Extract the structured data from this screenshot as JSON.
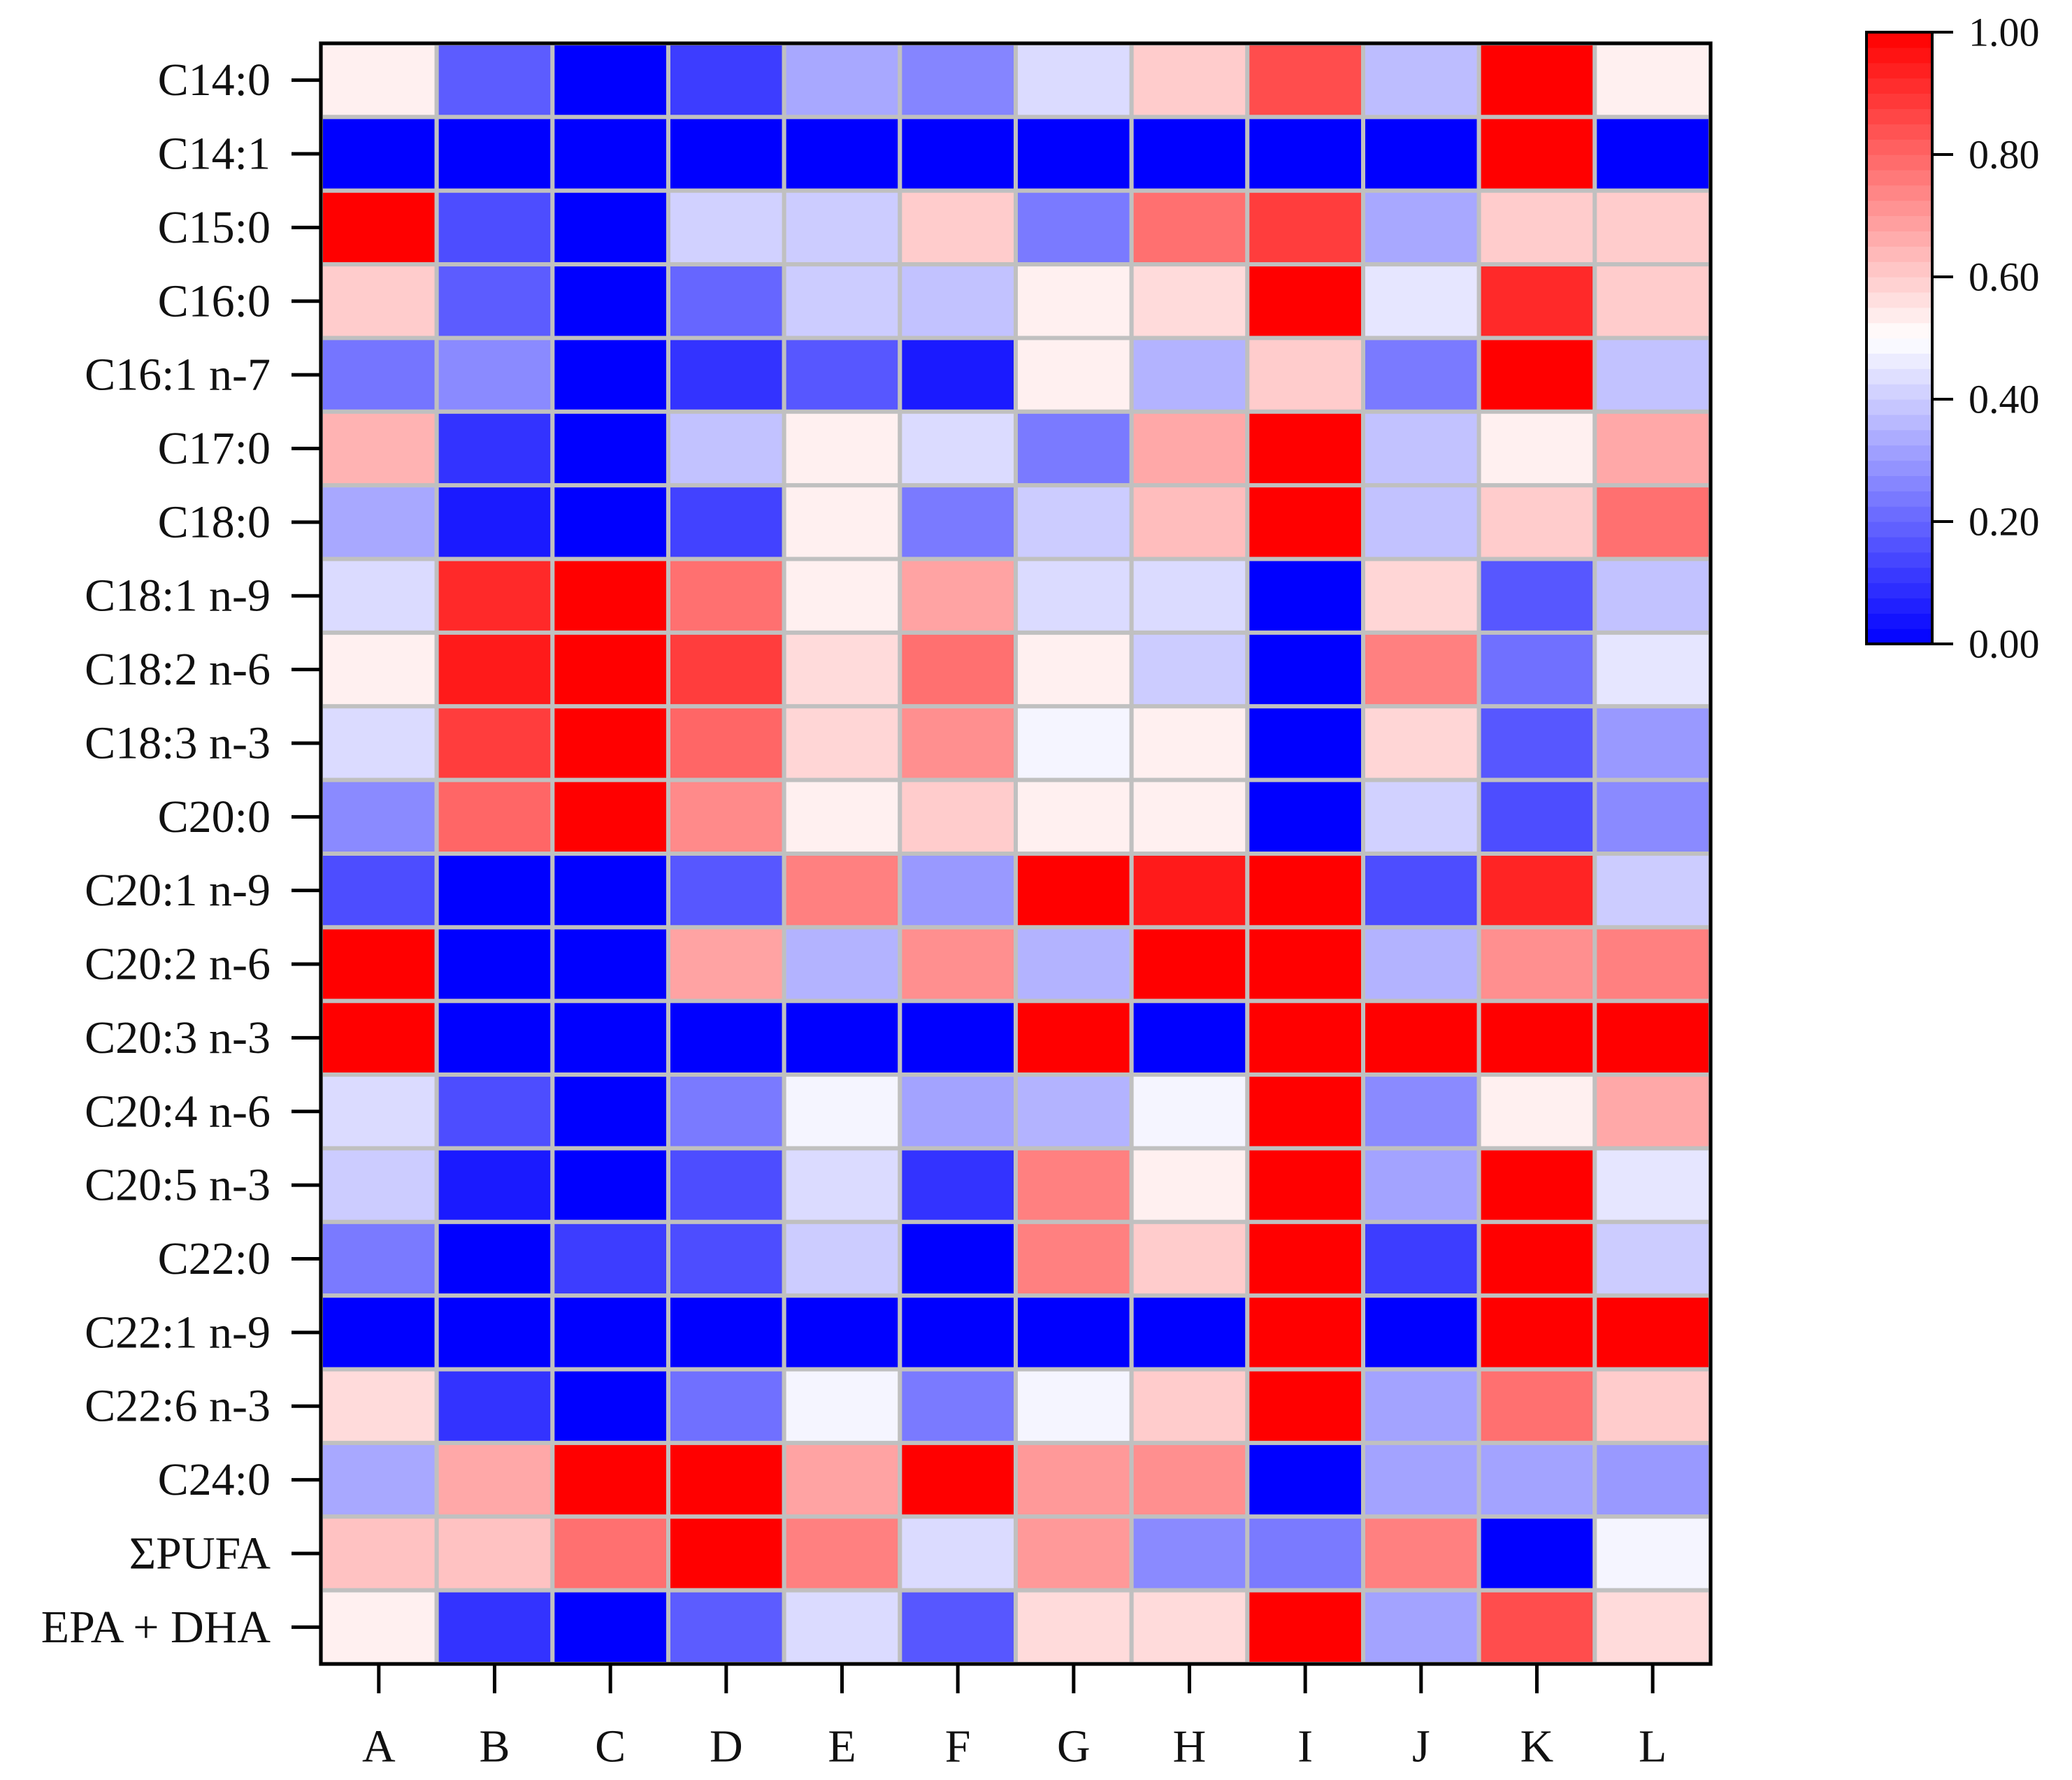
{
  "chart_data": {
    "type": "heatmap",
    "title": "",
    "xlabel": "",
    "ylabel": "",
    "columns": [
      "A",
      "B",
      "C",
      "D",
      "E",
      "F",
      "G",
      "H",
      "I",
      "J",
      "K",
      "L"
    ],
    "rows": [
      "C14:0",
      "C14:1",
      "C15:0",
      "C16:0",
      "C16:1 n-7",
      "C17:0",
      "C18:0",
      "C18:1 n-9",
      "C18:2 n-6",
      "C18:3 n-3",
      "C20:0",
      "C20:1 n-9",
      "C20:2 n-6",
      "C20:3 n-3",
      "C20:4 n-6",
      "C20:5 n-3",
      "C22:0",
      "C22:1 n-9",
      "C22:6 n-3",
      "C24:0",
      "ΣPUFA",
      "EPA + DHA"
    ],
    "values": [
      [
        0.53,
        0.18,
        0.0,
        0.12,
        0.33,
        0.26,
        0.43,
        0.6,
        0.85,
        0.37,
        1.0,
        0.53
      ],
      [
        0.0,
        0.0,
        0.0,
        0.0,
        0.0,
        0.0,
        0.0,
        0.0,
        0.0,
        0.0,
        1.0,
        0.0
      ],
      [
        1.0,
        0.15,
        0.0,
        0.41,
        0.4,
        0.6,
        0.24,
        0.78,
        0.88,
        0.33,
        0.6,
        0.6
      ],
      [
        0.6,
        0.18,
        0.0,
        0.2,
        0.4,
        0.38,
        0.53,
        0.57,
        1.0,
        0.45,
        0.92,
        0.6
      ],
      [
        0.23,
        0.27,
        0.0,
        0.1,
        0.17,
        0.05,
        0.53,
        0.35,
        0.6,
        0.24,
        1.0,
        0.38
      ],
      [
        0.65,
        0.1,
        0.0,
        0.38,
        0.53,
        0.43,
        0.24,
        0.67,
        1.0,
        0.38,
        0.53,
        0.67
      ],
      [
        0.33,
        0.05,
        0.0,
        0.13,
        0.53,
        0.24,
        0.4,
        0.63,
        1.0,
        0.38,
        0.6,
        0.78
      ],
      [
        0.43,
        0.92,
        1.0,
        0.78,
        0.53,
        0.68,
        0.43,
        0.43,
        0.0,
        0.58,
        0.17,
        0.38
      ],
      [
        0.53,
        0.95,
        1.0,
        0.88,
        0.57,
        0.78,
        0.53,
        0.4,
        0.0,
        0.75,
        0.22,
        0.45
      ],
      [
        0.43,
        0.88,
        1.0,
        0.8,
        0.58,
        0.72,
        0.48,
        0.53,
        0.0,
        0.58,
        0.17,
        0.3
      ],
      [
        0.27,
        0.8,
        1.0,
        0.73,
        0.53,
        0.6,
        0.53,
        0.53,
        0.0,
        0.41,
        0.15,
        0.27
      ],
      [
        0.15,
        0.0,
        0.0,
        0.17,
        0.75,
        0.3,
        1.0,
        0.95,
        1.0,
        0.15,
        0.93,
        0.4
      ],
      [
        1.0,
        0.0,
        0.0,
        0.68,
        0.35,
        0.72,
        0.35,
        1.0,
        1.0,
        0.35,
        0.72,
        0.75
      ],
      [
        1.0,
        0.0,
        0.0,
        0.0,
        0.0,
        0.0,
        1.0,
        0.0,
        1.0,
        1.0,
        1.0,
        1.0
      ],
      [
        0.43,
        0.15,
        0.0,
        0.24,
        0.48,
        0.32,
        0.35,
        0.48,
        1.0,
        0.27,
        0.53,
        0.67
      ],
      [
        0.4,
        0.05,
        0.0,
        0.15,
        0.43,
        0.1,
        0.75,
        0.53,
        1.0,
        0.32,
        1.0,
        0.45
      ],
      [
        0.24,
        0.0,
        0.12,
        0.15,
        0.4,
        0.0,
        0.75,
        0.6,
        1.0,
        0.12,
        1.0,
        0.4
      ],
      [
        0.0,
        0.0,
        0.0,
        0.0,
        0.0,
        0.0,
        0.0,
        0.0,
        1.0,
        0.0,
        1.0,
        1.0
      ],
      [
        0.57,
        0.1,
        0.0,
        0.22,
        0.48,
        0.24,
        0.48,
        0.6,
        1.0,
        0.32,
        0.78,
        0.6
      ],
      [
        0.33,
        0.67,
        1.0,
        1.0,
        0.68,
        1.0,
        0.7,
        0.72,
        0.0,
        0.32,
        0.32,
        0.3
      ],
      [
        0.62,
        0.62,
        0.78,
        1.0,
        0.75,
        0.43,
        0.7,
        0.27,
        0.24,
        0.75,
        0.0,
        0.48
      ],
      [
        0.53,
        0.1,
        0.0,
        0.18,
        0.43,
        0.17,
        0.57,
        0.57,
        1.0,
        0.32,
        0.85,
        0.57
      ]
    ],
    "colorbar": {
      "min": 0.0,
      "max": 1.0,
      "ticks": [
        "0.00",
        "0.20",
        "0.40",
        "0.60",
        "0.80",
        "1.00"
      ],
      "colors": {
        "low": "#0000ff",
        "mid": "#ffffff",
        "high": "#ff0000"
      }
    },
    "grid_line_color": "#c0c0c0"
  }
}
